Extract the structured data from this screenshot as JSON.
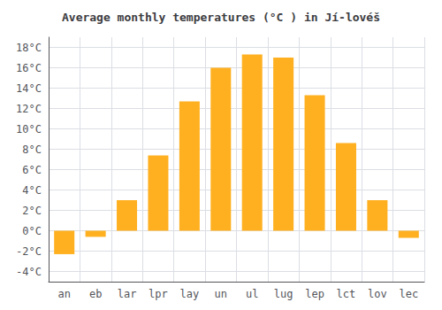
{
  "chart_data": {
    "type": "bar",
    "title": "Average monthly temperatures (°C ) in Jí-lovéš",
    "categories": [
      "an",
      "eb",
      "lar",
      "lpr",
      "lay",
      "un",
      "ul",
      "lug",
      "lep",
      "lct",
      "lov",
      "lec"
    ],
    "values": [
      -2.3,
      -0.6,
      3.0,
      7.4,
      12.7,
      16.0,
      17.3,
      17.0,
      13.3,
      8.6,
      3.0,
      -0.7
    ],
    "color": "#FFB020",
    "ylim": [
      -5,
      19
    ],
    "yticks": [
      {
        "value": -4,
        "label": "-4°C"
      },
      {
        "value": -2,
        "label": "-2°C"
      },
      {
        "value": 0,
        "label": "0°C"
      },
      {
        "value": 2,
        "label": "2°C"
      },
      {
        "value": 4,
        "label": "4°C"
      },
      {
        "value": 6,
        "label": "6°C"
      },
      {
        "value": 8,
        "label": "8°C"
      },
      {
        "value": 10,
        "label": "10°C"
      },
      {
        "value": 12,
        "label": "12°C"
      },
      {
        "value": 14,
        "label": "14°C"
      },
      {
        "value": 16,
        "label": "16°C"
      },
      {
        "value": 18,
        "label": "18°C"
      }
    ],
    "grid": true
  }
}
